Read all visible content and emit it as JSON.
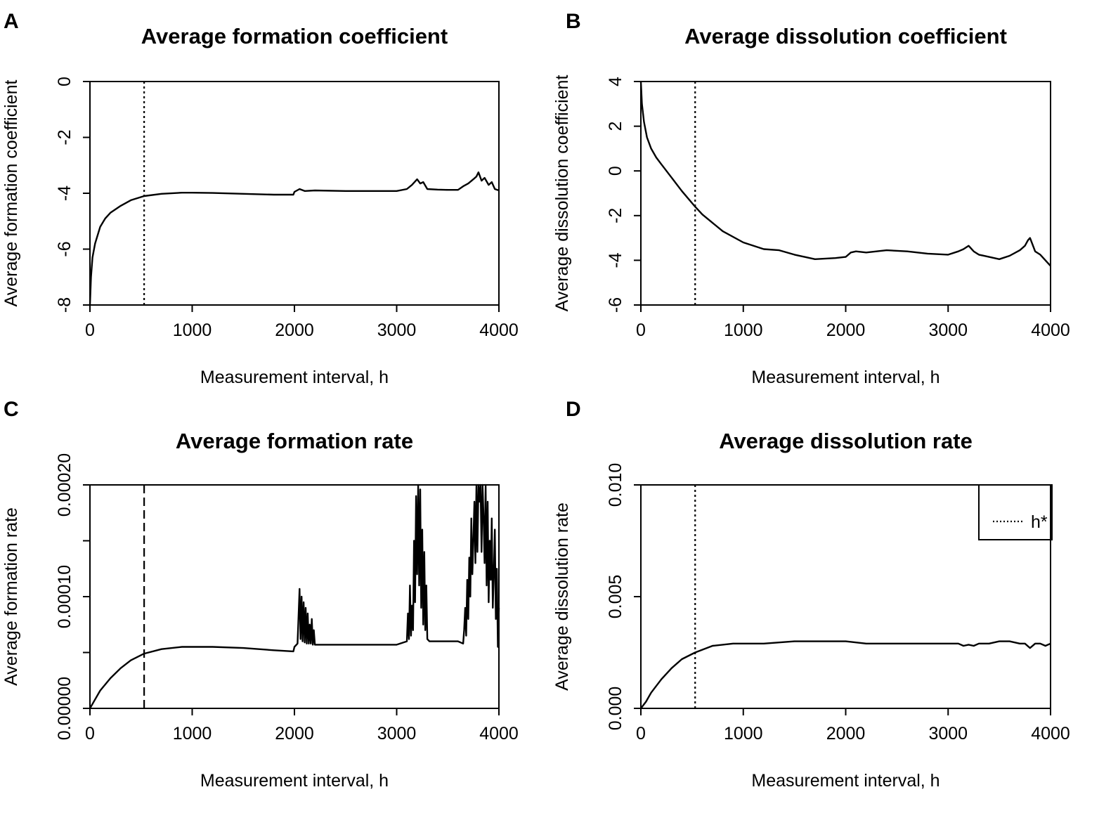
{
  "chart_data": [
    {
      "id": "A",
      "panel_letter": "A",
      "type": "line",
      "title": "Average formation coefficient",
      "xlabel": "Measurement interval, h",
      "ylabel": "Average formation coefficient",
      "xlim": [
        0,
        4000
      ],
      "ylim": [
        -8,
        0
      ],
      "xticks": [
        0,
        1000,
        2000,
        3000,
        4000
      ],
      "yticks": [
        -8,
        -6,
        -4,
        -2,
        0
      ],
      "xtick_labels": [
        "0",
        "1000",
        "2000",
        "3000",
        "4000"
      ],
      "ytick_labels": [
        "-8",
        "-6",
        "-4",
        "-2",
        "0"
      ],
      "h_star": 530,
      "h_star_style": "dotted",
      "series": [
        {
          "name": "formation coefficient",
          "x": [
            0,
            10,
            25,
            50,
            100,
            150,
            200,
            300,
            400,
            530,
            700,
            900,
            1000,
            1200,
            1500,
            1800,
            1990,
            2000,
            2050,
            2100,
            2200,
            2500,
            2800,
            3000,
            3100,
            3150,
            3200,
            3230,
            3260,
            3300,
            3400,
            3500,
            3600,
            3650,
            3700,
            3750,
            3780,
            3800,
            3830,
            3860,
            3900,
            3930,
            3960,
            4000
          ],
          "y": [
            -8.0,
            -7.0,
            -6.3,
            -5.8,
            -5.2,
            -4.9,
            -4.7,
            -4.45,
            -4.25,
            -4.1,
            -4.02,
            -3.98,
            -3.98,
            -3.99,
            -4.02,
            -4.05,
            -4.05,
            -3.95,
            -3.85,
            -3.92,
            -3.9,
            -3.92,
            -3.92,
            -3.92,
            -3.85,
            -3.7,
            -3.5,
            -3.65,
            -3.6,
            -3.85,
            -3.87,
            -3.88,
            -3.88,
            -3.75,
            -3.65,
            -3.5,
            -3.4,
            -3.25,
            -3.55,
            -3.45,
            -3.7,
            -3.6,
            -3.85,
            -3.9
          ]
        }
      ]
    },
    {
      "id": "B",
      "panel_letter": "B",
      "type": "line",
      "title": "Average dissolution coefficient",
      "xlabel": "Measurement interval, h",
      "ylabel": "Average dissolution coefficient",
      "xlim": [
        0,
        4000
      ],
      "ylim": [
        -6,
        4
      ],
      "xticks": [
        0,
        1000,
        2000,
        3000,
        4000
      ],
      "yticks": [
        -6,
        -4,
        -2,
        0,
        2,
        4
      ],
      "xtick_labels": [
        "0",
        "1000",
        "2000",
        "3000",
        "4000"
      ],
      "ytick_labels": [
        "-6",
        "-4",
        "-2",
        "0",
        "2",
        "4"
      ],
      "h_star": 530,
      "h_star_style": "dotted",
      "series": [
        {
          "name": "dissolution coefficient",
          "x": [
            0,
            10,
            30,
            60,
            100,
            150,
            200,
            300,
            400,
            530,
            600,
            800,
            1000,
            1200,
            1350,
            1500,
            1700,
            1900,
            2000,
            2050,
            2100,
            2200,
            2400,
            2600,
            2800,
            3000,
            3100,
            3150,
            3200,
            3250,
            3300,
            3400,
            3500,
            3600,
            3700,
            3750,
            3780,
            3800,
            3850,
            3900,
            3950,
            4000
          ],
          "y": [
            4.0,
            3.0,
            2.2,
            1.5,
            1.0,
            0.6,
            0.3,
            -0.3,
            -0.9,
            -1.6,
            -1.95,
            -2.7,
            -3.2,
            -3.5,
            -3.55,
            -3.75,
            -3.95,
            -3.9,
            -3.85,
            -3.65,
            -3.6,
            -3.65,
            -3.55,
            -3.6,
            -3.7,
            -3.75,
            -3.6,
            -3.5,
            -3.35,
            -3.6,
            -3.75,
            -3.85,
            -3.95,
            -3.8,
            -3.55,
            -3.35,
            -3.1,
            -3.0,
            -3.6,
            -3.75,
            -4.0,
            -4.25
          ]
        }
      ]
    },
    {
      "id": "C",
      "panel_letter": "C",
      "type": "line",
      "title": "Average formation rate",
      "xlabel": "Measurement interval, h",
      "ylabel": "Average formation rate",
      "xlim": [
        0,
        4000
      ],
      "ylim": [
        0,
        0.0002
      ],
      "xticks": [
        0,
        1000,
        2000,
        3000,
        4000
      ],
      "yticks": [
        0,
        5e-05,
        0.0001,
        0.00015,
        0.0002
      ],
      "xtick_labels": [
        "0",
        "1000",
        "2000",
        "3000",
        "4000"
      ],
      "ytick_labels": [
        "0.00000",
        "",
        "0.00010",
        "",
        "0.00020"
      ],
      "h_star": 530,
      "h_star_style": "dashed",
      "series": [
        {
          "name": "formation rate",
          "x": [
            0,
            50,
            100,
            200,
            300,
            400,
            530,
            700,
            900,
            1000,
            1200,
            1500,
            1800,
            1990,
            2000,
            2030,
            2050,
            2060,
            2070,
            2080,
            2090,
            2100,
            2110,
            2120,
            2130,
            2140,
            2150,
            2160,
            2170,
            2180,
            2190,
            2200,
            2500,
            2800,
            3000,
            3100,
            3110,
            3120,
            3130,
            3140,
            3150,
            3160,
            3170,
            3180,
            3190,
            3200,
            3210,
            3220,
            3230,
            3240,
            3250,
            3260,
            3270,
            3280,
            3290,
            3300,
            3320,
            3500,
            3600,
            3650,
            3660,
            3670,
            3680,
            3690,
            3700,
            3710,
            3720,
            3730,
            3740,
            3750,
            3760,
            3770,
            3780,
            3790,
            3800,
            3810,
            3820,
            3830,
            3840,
            3850,
            3860,
            3870,
            3880,
            3890,
            3900,
            3910,
            3920,
            3930,
            3940,
            3950,
            3960,
            3970,
            3980,
            3990,
            4000
          ],
          "y": [
            0.0,
            8e-06,
            1.6e-05,
            2.7e-05,
            3.6e-05,
            4.3e-05,
            4.9e-05,
            5.3e-05,
            5.5e-05,
            5.5e-05,
            5.5e-05,
            5.4e-05,
            5.2e-05,
            5.1e-05,
            5.5e-05,
            5.8e-05,
            0.000107,
            6.2e-05,
            0.0001,
            6e-05,
            9.5e-05,
            5.9e-05,
            9e-05,
            5.8e-05,
            8.5e-05,
            5.8e-05,
            7.5e-05,
            5.8e-05,
            8e-05,
            5.7e-05,
            7e-05,
            5.7e-05,
            5.7e-05,
            5.7e-05,
            5.7e-05,
            6e-05,
            8.5e-05,
            6.2e-05,
            0.00011,
            6.5e-05,
            9.2e-05,
            7e-05,
            0.00015,
            9.5e-05,
            0.00019,
            0.00012,
            0.0002,
            0.00011,
            0.000196,
            9e-05,
            0.00016,
            7.5e-05,
            0.00014,
            7e-05,
            0.00011,
            6.2e-05,
            6e-05,
            6e-05,
            6e-05,
            5.8e-05,
            7e-05,
            9e-05,
            6.5e-05,
            0.000115,
            8e-05,
            0.000135,
            0.0001,
            0.00017,
            0.00012,
            0.00015,
            0.000185,
            0.00013,
            0.0002,
            0.00014,
            0.0002,
            0.000185,
            0.0002,
            0.00014,
            0.0002,
            0.00017,
            0.00013,
            0.0002,
            0.00011,
            0.000185,
            9.5e-05,
            0.00015,
            0.000115,
            0.00017,
            9e-05,
            0.00012,
            0.00016,
            8e-05,
            0.000125,
            5.5e-05,
            9e-05
          ]
        }
      ]
    },
    {
      "id": "D",
      "panel_letter": "D",
      "type": "line",
      "title": "Average dissolution rate",
      "xlabel": "Measurement interval, h",
      "ylabel": "Average dissolution rate",
      "xlim": [
        0,
        4000
      ],
      "ylim": [
        0,
        0.01
      ],
      "xticks": [
        0,
        1000,
        2000,
        3000,
        4000
      ],
      "yticks": [
        0,
        0.005,
        0.01
      ],
      "xtick_labels": [
        "0",
        "1000",
        "2000",
        "3000",
        "4000"
      ],
      "ytick_labels": [
        "0.000",
        "0.005",
        "0.010"
      ],
      "h_star": 530,
      "h_star_style": "dotted",
      "legend": {
        "entries": [
          "h*"
        ],
        "placement": "top-right"
      },
      "series": [
        {
          "name": "dissolution rate",
          "x": [
            0,
            50,
            100,
            200,
            300,
            400,
            530,
            700,
            900,
            1000,
            1200,
            1500,
            1800,
            2000,
            2200,
            2500,
            2800,
            3000,
            3100,
            3150,
            3200,
            3250,
            3300,
            3400,
            3500,
            3600,
            3700,
            3750,
            3800,
            3850,
            3900,
            3950,
            4000
          ],
          "y": [
            0.0,
            0.0003,
            0.0007,
            0.0013,
            0.0018,
            0.0022,
            0.0025,
            0.0028,
            0.0029,
            0.0029,
            0.0029,
            0.003,
            0.003,
            0.003,
            0.0029,
            0.0029,
            0.0029,
            0.0029,
            0.0029,
            0.0028,
            0.00285,
            0.0028,
            0.0029,
            0.0029,
            0.003,
            0.003,
            0.0029,
            0.0029,
            0.0027,
            0.0029,
            0.0029,
            0.0028,
            0.0029
          ]
        }
      ]
    }
  ]
}
